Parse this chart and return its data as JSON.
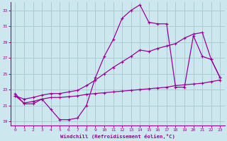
{
  "xlabel": "Windchill (Refroidissement éolien,°C)",
  "bg_color": "#cce8ee",
  "grid_color": "#aaccd4",
  "line_color": "#990099",
  "xlim": [
    -0.5,
    23.5
  ],
  "ylim": [
    18.5,
    34.0
  ],
  "yticks": [
    19,
    21,
    23,
    25,
    27,
    29,
    31,
    33
  ],
  "xticks": [
    0,
    1,
    2,
    3,
    4,
    5,
    6,
    7,
    8,
    9,
    10,
    11,
    12,
    13,
    14,
    15,
    16,
    17,
    18,
    19,
    20,
    21,
    22,
    23
  ],
  "line1_x": [
    0,
    1,
    2,
    3,
    4,
    5,
    6,
    7,
    8,
    9,
    10,
    11,
    12,
    13,
    14,
    15,
    16,
    17,
    18,
    19,
    20,
    21,
    22,
    23
  ],
  "line1_y": [
    22.5,
    21.2,
    21.2,
    21.8,
    20.5,
    19.2,
    19.2,
    19.4,
    21.0,
    24.5,
    27.2,
    29.3,
    32.0,
    33.0,
    33.7,
    31.5,
    31.3,
    31.3,
    23.3,
    23.3,
    29.8,
    27.2,
    26.8,
    24.5
  ],
  "line2_x": [
    0,
    1,
    2,
    3,
    4,
    5,
    6,
    7,
    8,
    9,
    10,
    11,
    12,
    13,
    14,
    15,
    16,
    17,
    18,
    19,
    20,
    21,
    22,
    23
  ],
  "line2_y": [
    22.2,
    21.3,
    21.5,
    21.8,
    22.0,
    22.0,
    22.1,
    22.2,
    22.4,
    22.5,
    22.6,
    22.7,
    22.8,
    22.9,
    23.0,
    23.1,
    23.2,
    23.3,
    23.5,
    23.6,
    23.7,
    23.8,
    24.0,
    24.2
  ],
  "line3_x": [
    0,
    1,
    2,
    3,
    4,
    5,
    6,
    7,
    8,
    9,
    10,
    11,
    12,
    13,
    14,
    15,
    16,
    17,
    18,
    19,
    20,
    21,
    22,
    23
  ],
  "line3_y": [
    22.2,
    21.8,
    22.0,
    22.3,
    22.5,
    22.5,
    22.7,
    22.9,
    23.5,
    24.2,
    25.0,
    25.8,
    26.5,
    27.2,
    28.0,
    27.8,
    28.2,
    28.5,
    28.8,
    29.5,
    30.0,
    30.2,
    26.8,
    24.5
  ]
}
